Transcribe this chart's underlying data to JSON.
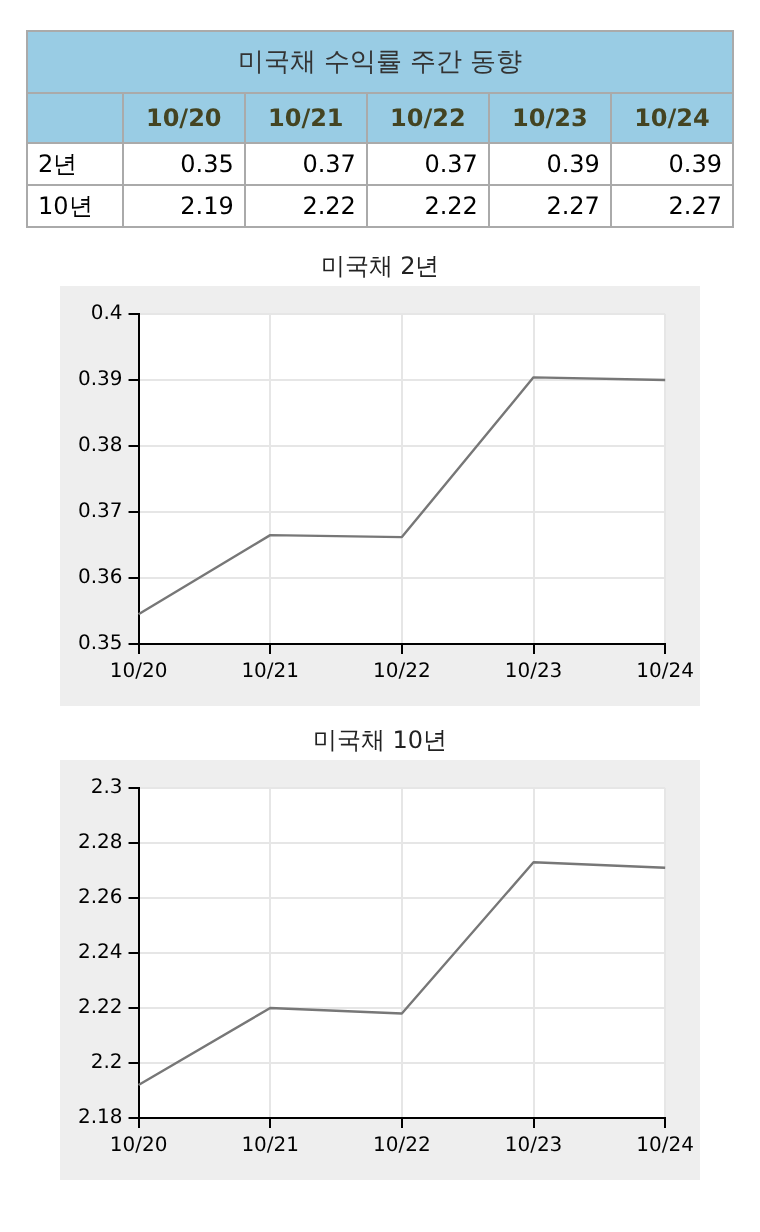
{
  "chart_data": [
    {
      "type": "other",
      "title": "미국채 수익률 주간 동향",
      "categories": [
        "10/20",
        "10/21",
        "10/22",
        "10/23",
        "10/24"
      ],
      "data_labels": true,
      "series": [
        {
          "name": "2년",
          "values": [
            0.35,
            0.37,
            0.37,
            0.39,
            0.39
          ]
        },
        {
          "name": "10년",
          "values": [
            2.19,
            2.22,
            2.22,
            2.27,
            2.27
          ]
        }
      ]
    },
    {
      "type": "line",
      "title": "미국채 2년",
      "categories": [
        "10/20",
        "10/21",
        "10/22",
        "10/23",
        "10/24"
      ],
      "ylim": [
        0.35,
        0.4
      ],
      "yticks": [
        0.35,
        0.36,
        0.37,
        0.38,
        0.39,
        0.4
      ],
      "grid": true,
      "marker": "none",
      "series": [
        {
          "color": "#777777",
          "values": [
            0.3545,
            0.3665,
            0.3662,
            0.3904,
            0.39
          ]
        }
      ]
    },
    {
      "type": "line",
      "title": "미국채 10년",
      "categories": [
        "10/20",
        "10/21",
        "10/22",
        "10/23",
        "10/24"
      ],
      "ylim": [
        2.18,
        2.3
      ],
      "yticks": [
        2.18,
        2.2,
        2.22,
        2.24,
        2.26,
        2.28,
        2.3
      ],
      "grid": true,
      "marker": "none",
      "series": [
        {
          "color": "#777777",
          "values": [
            2.192,
            2.22,
            2.218,
            2.273,
            2.271
          ]
        }
      ]
    }
  ]
}
